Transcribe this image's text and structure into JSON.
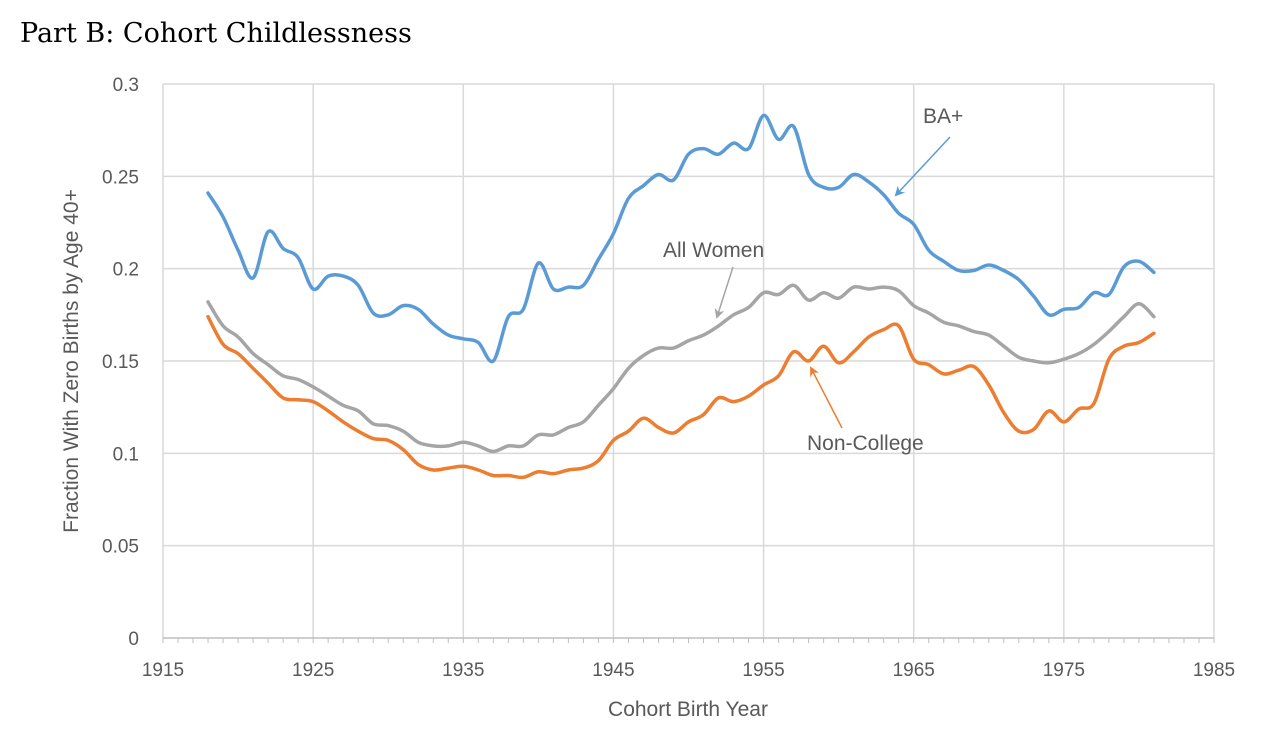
{
  "title": "Part B: Cohort Childlessness",
  "chart_data": {
    "type": "line",
    "xlabel": "Cohort Birth Year",
    "ylabel": "Fraction With Zero Births by Age 40+",
    "xlim": [
      1915,
      1985
    ],
    "ylim": [
      0,
      0.3
    ],
    "xticks": [
      "1915",
      "1925",
      "1935",
      "1945",
      "1955",
      "1965",
      "1975",
      "1985"
    ],
    "yticks": [
      "0",
      "0.05",
      "0.1",
      "0.15",
      "0.2",
      "0.25",
      "0.3"
    ],
    "x": [
      1918,
      1919,
      1920,
      1921,
      1922,
      1923,
      1924,
      1925,
      1926,
      1927,
      1928,
      1929,
      1930,
      1931,
      1932,
      1933,
      1934,
      1935,
      1936,
      1937,
      1938,
      1939,
      1940,
      1941,
      1942,
      1943,
      1944,
      1945,
      1946,
      1947,
      1948,
      1949,
      1950,
      1951,
      1952,
      1953,
      1954,
      1955,
      1956,
      1957,
      1958,
      1959,
      1960,
      1961,
      1962,
      1963,
      1964,
      1965,
      1966,
      1967,
      1968,
      1969,
      1970,
      1971,
      1972,
      1973,
      1974,
      1975,
      1976,
      1977,
      1978,
      1979,
      1980,
      1981
    ],
    "series": [
      {
        "name": "BA+",
        "color": "#5B9BD5",
        "values": [
          0.241,
          0.228,
          0.21,
          0.195,
          0.22,
          0.211,
          0.206,
          0.189,
          0.196,
          0.196,
          0.191,
          0.176,
          0.175,
          0.18,
          0.178,
          0.17,
          0.164,
          0.162,
          0.16,
          0.15,
          0.174,
          0.178,
          0.203,
          0.189,
          0.19,
          0.191,
          0.205,
          0.219,
          0.238,
          0.245,
          0.251,
          0.248,
          0.262,
          0.265,
          0.262,
          0.268,
          0.265,
          0.283,
          0.27,
          0.277,
          0.251,
          0.244,
          0.244,
          0.251,
          0.247,
          0.24,
          0.23,
          0.224,
          0.21,
          0.204,
          0.199,
          0.199,
          0.202,
          0.199,
          0.194,
          0.185,
          0.175,
          0.178,
          0.179,
          0.187,
          0.186,
          0.201,
          0.204,
          0.198
        ]
      },
      {
        "name": "All Women",
        "color": "#A5A5A5",
        "values": [
          0.182,
          0.169,
          0.163,
          0.154,
          0.148,
          0.142,
          0.14,
          0.136,
          0.131,
          0.126,
          0.123,
          0.116,
          0.115,
          0.112,
          0.106,
          0.104,
          0.104,
          0.106,
          0.104,
          0.101,
          0.104,
          0.104,
          0.11,
          0.11,
          0.114,
          0.117,
          0.126,
          0.135,
          0.146,
          0.153,
          0.157,
          0.157,
          0.161,
          0.164,
          0.169,
          0.175,
          0.179,
          0.187,
          0.186,
          0.191,
          0.183,
          0.187,
          0.184,
          0.19,
          0.189,
          0.19,
          0.188,
          0.18,
          0.176,
          0.171,
          0.169,
          0.166,
          0.164,
          0.158,
          0.152,
          0.15,
          0.149,
          0.151,
          0.154,
          0.159,
          0.166,
          0.174,
          0.181,
          0.174
        ]
      },
      {
        "name": "Non-College",
        "color": "#ED7D31",
        "values": [
          0.174,
          0.159,
          0.154,
          0.146,
          0.138,
          0.13,
          0.129,
          0.128,
          0.123,
          0.117,
          0.112,
          0.108,
          0.107,
          0.102,
          0.094,
          0.091,
          0.092,
          0.093,
          0.091,
          0.088,
          0.088,
          0.087,
          0.09,
          0.089,
          0.091,
          0.092,
          0.096,
          0.107,
          0.112,
          0.119,
          0.114,
          0.111,
          0.117,
          0.121,
          0.13,
          0.128,
          0.131,
          0.137,
          0.142,
          0.155,
          0.15,
          0.158,
          0.149,
          0.155,
          0.163,
          0.167,
          0.169,
          0.151,
          0.148,
          0.143,
          0.145,
          0.147,
          0.137,
          0.122,
          0.112,
          0.113,
          0.123,
          0.117,
          0.124,
          0.127,
          0.151,
          0.158,
          0.16,
          0.165
        ]
      }
    ],
    "annotations": [
      {
        "text": "BA+",
        "series": "BA+"
      },
      {
        "text": "All Women",
        "series": "All Women"
      },
      {
        "text": "Non-College",
        "series": "Non-College"
      }
    ],
    "grid": true
  }
}
